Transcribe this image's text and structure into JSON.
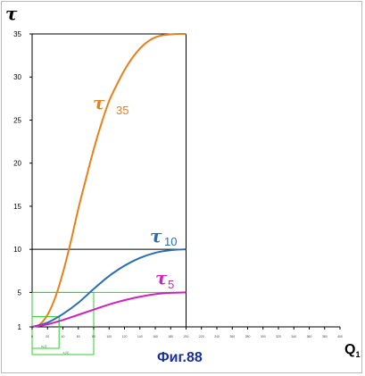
{
  "chart_data": {
    "type": "line",
    "ylabel": "τ",
    "xlabel": "Q",
    "xlabel_sub": "1",
    "yticks": [
      1,
      5,
      10,
      15,
      20,
      25,
      30,
      35
    ],
    "xticks": [
      "0",
      "20",
      "40",
      "60",
      "80",
      "100",
      "120",
      "140",
      "160",
      "180",
      "200",
      "220",
      "240",
      "260",
      "280",
      "300",
      "320",
      "340",
      "360",
      "380",
      "400"
    ],
    "xlim": [
      0,
      400
    ],
    "ylim": [
      0,
      36
    ],
    "series": [
      {
        "name": "τ",
        "subscript": "35",
        "color": "#e8801a",
        "x": [
          0,
          10,
          20,
          30,
          40,
          50,
          60,
          70,
          80,
          90,
          100,
          110,
          120,
          130,
          140,
          150,
          160,
          170,
          180,
          190,
          200
        ],
        "y": [
          1,
          1.3,
          2.4,
          4.4,
          7.3,
          10.8,
          14.7,
          18.2,
          21.6,
          24.6,
          27.2,
          29.1,
          30.8,
          32.2,
          33.3,
          34.1,
          34.6,
          34.85,
          34.95,
          35,
          35
        ]
      },
      {
        "name": "τ",
        "subscript": "10",
        "color": "#2a6db0",
        "x": [
          0,
          20,
          40,
          60,
          80,
          100,
          120,
          140,
          160,
          180,
          200
        ],
        "y": [
          1,
          1.5,
          2.5,
          3.8,
          5.4,
          6.9,
          8.1,
          9.0,
          9.6,
          9.9,
          10
        ]
      },
      {
        "name": "τ",
        "subscript": "5",
        "color": "#d020c0",
        "x": [
          0,
          20,
          40,
          60,
          80,
          100,
          120,
          140,
          160,
          180,
          200
        ],
        "y": [
          1,
          1.3,
          1.8,
          2.4,
          3.0,
          3.6,
          4.1,
          4.5,
          4.8,
          4.95,
          5
        ]
      }
    ],
    "annotations": {
      "figure_label": "Фиг.88",
      "box_label_1": "x₁/ξ",
      "box_label_2": "x₂/ξ"
    }
  }
}
